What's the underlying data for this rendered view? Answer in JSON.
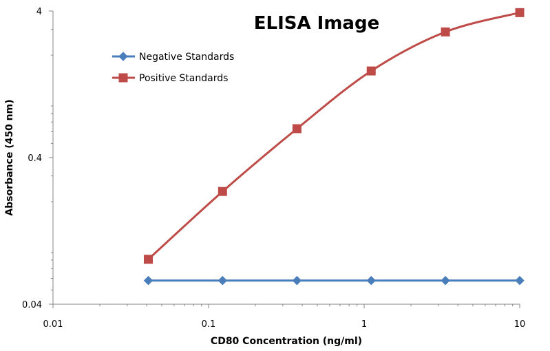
{
  "chart_data": {
    "type": "line",
    "title": "ELISA Image",
    "xlabel": "CD80 Concentration (ng/ml)",
    "ylabel": "Absorbance (450 nm)",
    "x_scale": "log",
    "y_scale": "log",
    "xlim": [
      0.01,
      10
    ],
    "ylim": [
      0.04,
      4
    ],
    "x_ticks": [
      {
        "value": 0.01,
        "label": "0.01"
      },
      {
        "value": 0.1,
        "label": "0.1"
      },
      {
        "value": 1,
        "label": "1"
      },
      {
        "value": 10,
        "label": "10"
      }
    ],
    "y_ticks": [
      {
        "value": 4,
        "label": "4"
      },
      {
        "value": 0.4,
        "label": "0.4"
      },
      {
        "value": 0.04,
        "label": "0.04"
      }
    ],
    "grid": false,
    "legend_position": "top-left",
    "x": [
      0.041,
      0.123,
      0.37,
      1.11,
      3.33,
      10
    ],
    "series": [
      {
        "name": "Negative Standards",
        "color": "#4a7ebb",
        "marker": "diamond",
        "values": [
          0.058,
          0.058,
          0.058,
          0.058,
          0.058,
          0.058
        ]
      },
      {
        "name": "Positive Standards",
        "color": "#be4b48",
        "marker": "square",
        "values": [
          0.081,
          0.235,
          0.63,
          1.56,
          2.88,
          3.9
        ]
      }
    ]
  }
}
